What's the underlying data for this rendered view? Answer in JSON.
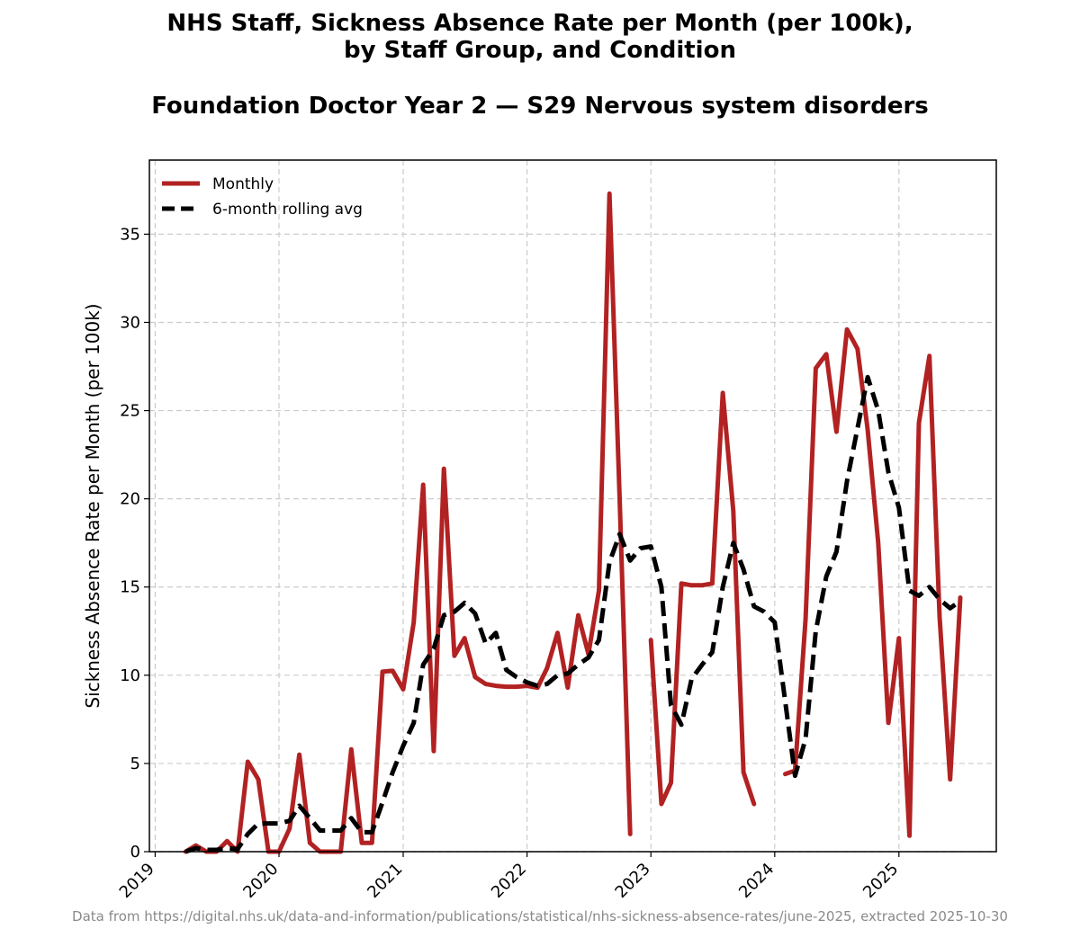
{
  "title_line1": "NHS Staff, Sickness Absence Rate per Month (per 100k),",
  "title_line2": "by Staff Group, and Condition",
  "subtitle": "Foundation Doctor Year 2 — S29 Nervous system disorders",
  "source_note": "Data from https://digital.nhs.uk/data-and-information/publications/statistical/nhs-sickness-absence-rates/june-2025, extracted 2025-10-30",
  "colors": {
    "monthly": "#b22222",
    "rolling": "#000000",
    "grid": "#cccccc"
  },
  "chart_data": {
    "type": "line",
    "title": "NHS Staff, Sickness Absence Rate per Month (per 100k), by Staff Group, and Condition",
    "subtitle": "Foundation Doctor Year 2 — S29 Nervous system disorders",
    "xlabel": "",
    "ylabel": "Sickness Absence Rate per Month (per 100k)",
    "x_type": "date",
    "xlim": [
      "2018-12-15",
      "2025-10-15"
    ],
    "ylim": [
      0,
      39.2
    ],
    "x_ticks": [
      {
        "date": "2019-01-01",
        "label": "2019"
      },
      {
        "date": "2020-01-01",
        "label": "2020"
      },
      {
        "date": "2021-01-01",
        "label": "2021"
      },
      {
        "date": "2022-01-01",
        "label": "2022"
      },
      {
        "date": "2023-01-01",
        "label": "2023"
      },
      {
        "date": "2024-01-01",
        "label": "2024"
      },
      {
        "date": "2025-01-01",
        "label": "2025"
      }
    ],
    "y_ticks": [
      0,
      5,
      10,
      15,
      20,
      25,
      30,
      35
    ],
    "grid": true,
    "legend_position": "top-left",
    "series": [
      {
        "name": "Monthly",
        "style": "solid",
        "points": [
          [
            "2019-04-01",
            0.0
          ],
          [
            "2019-05-01",
            0.35
          ],
          [
            "2019-06-01",
            0.0
          ],
          [
            "2019-07-01",
            0.0
          ],
          [
            "2019-08-01",
            0.6
          ],
          [
            "2019-09-01",
            0.0
          ],
          [
            "2019-10-01",
            5.1
          ],
          [
            "2019-11-01",
            4.1
          ],
          [
            "2019-12-01",
            0.0
          ],
          [
            "2020-01-01",
            0.0
          ],
          [
            "2020-02-01",
            1.3
          ],
          [
            "2020-03-01",
            5.5
          ],
          [
            "2020-04-01",
            0.5
          ],
          [
            "2020-05-01",
            0.0
          ],
          [
            "2020-06-01",
            0.0
          ],
          [
            "2020-07-01",
            0.0
          ],
          [
            "2020-08-01",
            5.8
          ],
          [
            "2020-09-01",
            0.5
          ],
          [
            "2020-10-01",
            0.5
          ],
          [
            "2020-11-01",
            10.2
          ],
          [
            "2020-12-01",
            10.25
          ],
          [
            "2021-01-01",
            9.2
          ],
          [
            "2021-02-01",
            13.0
          ],
          [
            "2021-03-01",
            20.8
          ],
          [
            "2021-04-01",
            5.7
          ],
          [
            "2021-05-01",
            21.7
          ],
          [
            "2021-06-01",
            11.1
          ],
          [
            "2021-07-01",
            12.1
          ],
          [
            "2021-08-01",
            9.9
          ],
          [
            "2021-09-01",
            9.5
          ],
          [
            "2021-10-01",
            9.4
          ],
          [
            "2021-11-01",
            9.35
          ],
          [
            "2021-12-01",
            9.35
          ],
          [
            "2022-01-01",
            9.4
          ],
          [
            "2022-02-01",
            9.3
          ],
          [
            "2022-03-01",
            10.4
          ],
          [
            "2022-04-01",
            12.4
          ],
          [
            "2022-05-01",
            9.3
          ],
          [
            "2022-06-01",
            13.4
          ],
          [
            "2022-07-01",
            11.2
          ],
          [
            "2022-08-01",
            14.8
          ],
          [
            "2022-09-01",
            37.3
          ],
          [
            "2022-10-01",
            20.0
          ],
          [
            "2022-11-01",
            1.0
          ],
          null,
          [
            "2023-01-01",
            12.0
          ],
          [
            "2023-02-01",
            2.7
          ],
          [
            "2023-03-01",
            3.9
          ],
          [
            "2023-04-01",
            15.2
          ],
          [
            "2023-05-01",
            15.1
          ],
          [
            "2023-06-01",
            15.1
          ],
          [
            "2023-07-01",
            15.2
          ],
          [
            "2023-08-01",
            26.0
          ],
          [
            "2023-09-01",
            19.3
          ],
          [
            "2023-10-01",
            4.5
          ],
          [
            "2023-11-01",
            2.7
          ],
          null,
          [
            "2024-02-01",
            4.4
          ],
          [
            "2024-03-01",
            4.6
          ],
          [
            "2024-04-01",
            13.2
          ],
          [
            "2024-05-01",
            27.4
          ],
          [
            "2024-06-01",
            28.2
          ],
          [
            "2024-07-01",
            23.8
          ],
          [
            "2024-08-01",
            29.6
          ],
          [
            "2024-09-01",
            28.5
          ],
          [
            "2024-10-01",
            23.9
          ],
          [
            "2024-11-01",
            17.5
          ],
          [
            "2024-12-01",
            7.3
          ],
          [
            "2025-01-01",
            12.1
          ],
          [
            "2025-02-01",
            0.9
          ],
          [
            "2025-03-01",
            24.3
          ],
          [
            "2025-04-01",
            28.1
          ],
          [
            "2025-05-01",
            13.3
          ],
          [
            "2025-06-01",
            4.1
          ],
          [
            "2025-07-01",
            14.4
          ]
        ]
      },
      {
        "name": "6-month rolling avg",
        "style": "dashed",
        "points": [
          [
            "2019-04-01",
            0.0
          ],
          [
            "2019-05-01",
            0.2
          ],
          [
            "2019-06-01",
            0.1
          ],
          [
            "2019-07-01",
            0.1
          ],
          [
            "2019-08-01",
            0.2
          ],
          [
            "2019-09-01",
            0.15
          ],
          [
            "2019-10-01",
            1.0
          ],
          [
            "2019-11-01",
            1.6
          ],
          [
            "2019-12-01",
            1.6
          ],
          [
            "2020-01-01",
            1.6
          ],
          [
            "2020-02-01",
            1.75
          ],
          [
            "2020-03-01",
            2.6
          ],
          [
            "2020-04-01",
            1.9
          ],
          [
            "2020-05-01",
            1.2
          ],
          [
            "2020-06-01",
            1.2
          ],
          [
            "2020-07-01",
            1.2
          ],
          [
            "2020-08-01",
            1.9
          ],
          [
            "2020-09-01",
            1.1
          ],
          [
            "2020-10-01",
            1.1
          ],
          [
            "2020-11-01",
            2.8
          ],
          [
            "2020-12-01",
            4.5
          ],
          [
            "2021-01-01",
            6.0
          ],
          [
            "2021-02-01",
            7.3
          ],
          [
            "2021-03-01",
            10.6
          ],
          [
            "2021-04-01",
            11.5
          ],
          [
            "2021-05-01",
            13.4
          ],
          [
            "2021-06-01",
            13.6
          ],
          [
            "2021-07-01",
            14.1
          ],
          [
            "2021-08-01",
            13.5
          ],
          [
            "2021-09-01",
            11.8
          ],
          [
            "2021-10-01",
            12.4
          ],
          [
            "2021-11-01",
            10.3
          ],
          [
            "2021-12-01",
            9.9
          ],
          [
            "2022-01-01",
            9.6
          ],
          [
            "2022-02-01",
            9.4
          ],
          [
            "2022-03-01",
            9.5
          ],
          [
            "2022-04-01",
            10.0
          ],
          [
            "2022-05-01",
            10.1
          ],
          [
            "2022-06-01",
            10.6
          ],
          [
            "2022-07-01",
            11.0
          ],
          [
            "2022-08-01",
            12.0
          ],
          [
            "2022-09-01",
            16.4
          ],
          [
            "2022-10-01",
            18.0
          ],
          [
            "2022-11-01",
            16.5
          ],
          [
            "2022-12-01",
            17.2
          ],
          [
            "2023-01-01",
            17.3
          ],
          [
            "2023-02-01",
            15.0
          ],
          [
            "2023-03-01",
            8.3
          ],
          [
            "2023-04-01",
            7.2
          ],
          [
            "2023-05-01",
            9.8
          ],
          [
            "2023-06-01",
            10.6
          ],
          [
            "2023-07-01",
            11.3
          ],
          [
            "2023-08-01",
            15.0
          ],
          [
            "2023-09-01",
            17.5
          ],
          [
            "2023-10-01",
            16.0
          ],
          [
            "2023-11-01",
            13.9
          ],
          [
            "2023-12-01",
            13.6
          ],
          [
            "2024-01-01",
            13.0
          ],
          [
            "2024-02-01",
            8.5
          ],
          [
            "2024-03-01",
            4.3
          ],
          [
            "2024-04-01",
            6.4
          ],
          [
            "2024-05-01",
            12.5
          ],
          [
            "2024-06-01",
            15.6
          ],
          [
            "2024-07-01",
            17.0
          ],
          [
            "2024-08-01",
            21.0
          ],
          [
            "2024-09-01",
            24.0
          ],
          [
            "2024-10-01",
            26.9
          ],
          [
            "2024-11-01",
            25.0
          ],
          [
            "2024-12-01",
            21.5
          ],
          [
            "2025-01-01",
            19.5
          ],
          [
            "2025-02-01",
            14.8
          ],
          [
            "2025-03-01",
            14.5
          ],
          [
            "2025-04-01",
            15.0
          ],
          [
            "2025-05-01",
            14.3
          ],
          [
            "2025-06-01",
            13.8
          ],
          [
            "2025-07-01",
            14.2
          ]
        ]
      }
    ]
  }
}
